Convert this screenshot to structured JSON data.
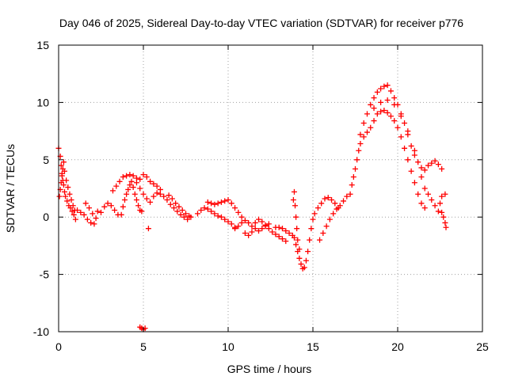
{
  "chart_data": {
    "type": "scatter",
    "title": "Day 046 of 2025, Sidereal Day-to-day VTEC variation (SDTVAR) for receiver p776",
    "xlabel": "GPS time / hours",
    "ylabel": "SDTVAR / TECUs",
    "xlim": [
      0,
      25
    ],
    "ylim": [
      -10,
      15
    ],
    "xticks": [
      0,
      5,
      10,
      15,
      20,
      25
    ],
    "yticks": [
      -10,
      -5,
      0,
      5,
      10,
      15
    ],
    "grid": true,
    "marker": "plus",
    "color": "#ff0000",
    "series": [
      {
        "name": "SDTVAR",
        "points": [
          [
            0.0,
            6.0
          ],
          [
            0.1,
            5.3
          ],
          [
            0.15,
            4.5
          ],
          [
            0.2,
            3.8
          ],
          [
            0.25,
            3.2
          ],
          [
            0.3,
            2.8
          ],
          [
            0.35,
            2.2
          ],
          [
            0.4,
            1.8
          ],
          [
            0.5,
            1.4
          ],
          [
            0.6,
            1.0
          ],
          [
            0.7,
            0.8
          ],
          [
            0.8,
            0.5
          ],
          [
            0.9,
            0.2
          ],
          [
            1.0,
            -0.2
          ],
          [
            0.05,
            1.8
          ],
          [
            0.1,
            2.4
          ],
          [
            0.15,
            3.0
          ],
          [
            0.2,
            3.6
          ],
          [
            0.25,
            4.2
          ],
          [
            0.3,
            4.8
          ],
          [
            0.35,
            4.0
          ],
          [
            0.45,
            3.2
          ],
          [
            0.55,
            2.6
          ],
          [
            0.65,
            2.0
          ],
          [
            0.75,
            1.5
          ],
          [
            0.85,
            1.0
          ],
          [
            0.95,
            0.6
          ],
          [
            1.1,
            0.6
          ],
          [
            1.3,
            0.4
          ],
          [
            1.5,
            0.2
          ],
          [
            1.7,
            -0.2
          ],
          [
            1.9,
            -0.5
          ],
          [
            2.1,
            -0.6
          ],
          [
            2.3,
            0.5
          ],
          [
            1.6,
            1.2
          ],
          [
            1.8,
            0.8
          ],
          [
            2.0,
            0.3
          ],
          [
            2.2,
            -0.1
          ],
          [
            2.5,
            0.4
          ],
          [
            2.7,
            0.9
          ],
          [
            2.9,
            1.2
          ],
          [
            3.1,
            1.0
          ],
          [
            3.3,
            0.6
          ],
          [
            3.5,
            0.2
          ],
          [
            3.2,
            2.3
          ],
          [
            3.4,
            2.7
          ],
          [
            3.6,
            3.1
          ],
          [
            3.8,
            3.5
          ],
          [
            4.0,
            3.6
          ],
          [
            4.2,
            3.7
          ],
          [
            4.4,
            3.6
          ],
          [
            4.6,
            3.4
          ],
          [
            4.8,
            3.3
          ],
          [
            5.0,
            3.7
          ],
          [
            5.2,
            3.5
          ],
          [
            5.4,
            3.1
          ],
          [
            5.6,
            2.9
          ],
          [
            5.8,
            2.7
          ],
          [
            6.0,
            2.4
          ],
          [
            3.7,
            0.2
          ],
          [
            3.8,
            0.9
          ],
          [
            3.9,
            1.5
          ],
          [
            4.0,
            2.0
          ],
          [
            4.1,
            2.4
          ],
          [
            4.2,
            2.8
          ],
          [
            4.3,
            3.1
          ],
          [
            4.4,
            2.6
          ],
          [
            4.5,
            2.0
          ],
          [
            4.6,
            1.5
          ],
          [
            4.7,
            1.0
          ],
          [
            4.8,
            0.6
          ],
          [
            4.9,
            0.5
          ],
          [
            4.6,
            3.0
          ],
          [
            4.8,
            2.5
          ],
          [
            5.0,
            2.0
          ],
          [
            5.2,
            1.6
          ],
          [
            5.4,
            1.3
          ],
          [
            5.6,
            1.8
          ],
          [
            5.8,
            2.1
          ],
          [
            6.0,
            2.0
          ],
          [
            6.2,
            1.8
          ],
          [
            6.4,
            1.5
          ],
          [
            6.6,
            1.1
          ],
          [
            6.8,
            0.8
          ],
          [
            7.0,
            0.5
          ],
          [
            7.2,
            0.2
          ],
          [
            7.4,
            0.0
          ],
          [
            7.6,
            -0.2
          ],
          [
            7.8,
            0.0
          ],
          [
            6.5,
            1.9
          ],
          [
            6.7,
            1.6
          ],
          [
            6.9,
            1.2
          ],
          [
            7.1,
            0.9
          ],
          [
            7.3,
            0.6
          ],
          [
            7.5,
            0.3
          ],
          [
            7.7,
            0.1
          ],
          [
            8.2,
            0.3
          ],
          [
            8.4,
            0.6
          ],
          [
            8.6,
            0.8
          ],
          [
            8.8,
            0.7
          ],
          [
            9.0,
            0.5
          ],
          [
            9.2,
            0.3
          ],
          [
            9.4,
            0.1
          ],
          [
            9.6,
            0.0
          ],
          [
            9.8,
            -0.2
          ],
          [
            10.0,
            -0.4
          ],
          [
            10.2,
            -0.6
          ],
          [
            10.4,
            -0.9
          ],
          [
            8.8,
            1.3
          ],
          [
            9.0,
            1.2
          ],
          [
            9.2,
            1.1
          ],
          [
            9.4,
            1.2
          ],
          [
            9.6,
            1.3
          ],
          [
            9.8,
            1.4
          ],
          [
            10.0,
            1.5
          ],
          [
            10.2,
            1.2
          ],
          [
            10.4,
            0.8
          ],
          [
            10.6,
            0.4
          ],
          [
            10.8,
            0.0
          ],
          [
            10.4,
            -1.0
          ],
          [
            10.6,
            -0.8
          ],
          [
            10.8,
            -0.5
          ],
          [
            11.0,
            -0.3
          ],
          [
            11.2,
            -0.5
          ],
          [
            11.4,
            -0.8
          ],
          [
            11.6,
            -1.0
          ],
          [
            11.8,
            -1.2
          ],
          [
            12.0,
            -1.0
          ],
          [
            12.2,
            -0.8
          ],
          [
            12.4,
            -0.6
          ],
          [
            11.0,
            -1.4
          ],
          [
            11.2,
            -1.6
          ],
          [
            11.4,
            -1.3
          ],
          [
            11.6,
            -0.5
          ],
          [
            11.8,
            -0.2
          ],
          [
            12.0,
            -0.4
          ],
          [
            12.2,
            -0.7
          ],
          [
            12.4,
            -1.0
          ],
          [
            12.6,
            -1.3
          ],
          [
            12.8,
            -1.5
          ],
          [
            13.0,
            -1.7
          ],
          [
            13.2,
            -1.9
          ],
          [
            13.4,
            -2.1
          ],
          [
            12.8,
            -0.9
          ],
          [
            13.0,
            -0.9
          ],
          [
            13.2,
            -1.0
          ],
          [
            13.4,
            -1.2
          ],
          [
            13.6,
            -1.4
          ],
          [
            13.8,
            -1.6
          ],
          [
            13.9,
            -1.8
          ],
          [
            14.0,
            -2.4
          ],
          [
            14.1,
            -3.0
          ],
          [
            14.2,
            -3.6
          ],
          [
            14.3,
            -4.1
          ],
          [
            14.4,
            -4.5
          ],
          [
            14.5,
            -4.4
          ],
          [
            14.6,
            -3.8
          ],
          [
            14.7,
            -3.0
          ],
          [
            14.8,
            -2.0
          ],
          [
            14.9,
            -1.0
          ],
          [
            15.0,
            -0.2
          ],
          [
            13.85,
            1.5
          ],
          [
            13.9,
            2.2
          ],
          [
            13.95,
            1.0
          ],
          [
            14.0,
            0.0
          ],
          [
            14.05,
            -1.0
          ],
          [
            14.1,
            -2.0
          ],
          [
            14.2,
            -2.8
          ],
          [
            15.1,
            0.3
          ],
          [
            15.3,
            0.8
          ],
          [
            15.5,
            1.2
          ],
          [
            15.7,
            1.6
          ],
          [
            15.9,
            1.7
          ],
          [
            16.1,
            1.5
          ],
          [
            16.3,
            1.2
          ],
          [
            16.5,
            0.8
          ],
          [
            15.4,
            -2.0
          ],
          [
            15.6,
            -1.4
          ],
          [
            15.8,
            -0.8
          ],
          [
            16.0,
            -0.2
          ],
          [
            16.2,
            0.3
          ],
          [
            16.4,
            0.7
          ],
          [
            16.6,
            1.0
          ],
          [
            16.8,
            1.4
          ],
          [
            17.0,
            1.8
          ],
          [
            17.2,
            2.0
          ],
          [
            17.3,
            2.8
          ],
          [
            17.4,
            3.5
          ],
          [
            17.5,
            4.2
          ],
          [
            17.6,
            5.0
          ],
          [
            17.7,
            5.8
          ],
          [
            17.8,
            6.4
          ],
          [
            18.0,
            7.0
          ],
          [
            18.2,
            7.4
          ],
          [
            18.4,
            7.8
          ],
          [
            18.6,
            8.4
          ],
          [
            18.8,
            9.0
          ],
          [
            19.0,
            9.2
          ],
          [
            19.2,
            9.3
          ],
          [
            19.4,
            9.1
          ],
          [
            19.6,
            8.8
          ],
          [
            19.8,
            8.4
          ],
          [
            20.0,
            7.8
          ],
          [
            20.2,
            7.0
          ],
          [
            20.4,
            6.0
          ],
          [
            20.6,
            5.0
          ],
          [
            20.8,
            4.0
          ],
          [
            21.0,
            3.0
          ],
          [
            21.2,
            2.0
          ],
          [
            21.4,
            1.2
          ],
          [
            21.6,
            0.8
          ],
          [
            17.8,
            7.2
          ],
          [
            18.0,
            8.2
          ],
          [
            18.2,
            9.0
          ],
          [
            18.4,
            9.8
          ],
          [
            18.6,
            10.4
          ],
          [
            18.8,
            10.9
          ],
          [
            19.0,
            11.2
          ],
          [
            19.2,
            11.4
          ],
          [
            19.4,
            11.5
          ],
          [
            19.6,
            11.0
          ],
          [
            19.8,
            10.4
          ],
          [
            20.0,
            9.8
          ],
          [
            20.2,
            9.0
          ],
          [
            20.4,
            8.2
          ],
          [
            20.6,
            7.2
          ],
          [
            20.8,
            6.2
          ],
          [
            21.0,
            5.4
          ],
          [
            21.2,
            4.8
          ],
          [
            21.4,
            4.3
          ],
          [
            21.6,
            4.1
          ],
          [
            18.6,
            9.5
          ],
          [
            19.0,
            10.0
          ],
          [
            19.4,
            10.2
          ],
          [
            19.8,
            9.8
          ],
          [
            20.2,
            8.8
          ],
          [
            20.6,
            7.5
          ],
          [
            21.0,
            5.8
          ],
          [
            21.4,
            3.5
          ],
          [
            21.6,
            2.5
          ],
          [
            21.8,
            2.0
          ],
          [
            22.0,
            1.5
          ],
          [
            22.2,
            1.0
          ],
          [
            22.4,
            0.5
          ],
          [
            22.6,
            1.8
          ],
          [
            22.8,
            2.0
          ],
          [
            21.8,
            4.5
          ],
          [
            22.0,
            4.7
          ],
          [
            22.2,
            4.9
          ],
          [
            22.4,
            4.6
          ],
          [
            22.6,
            4.2
          ],
          [
            22.5,
            1.2
          ],
          [
            22.6,
            0.4
          ],
          [
            22.7,
            0.0
          ],
          [
            22.8,
            -0.5
          ],
          [
            22.85,
            -0.9
          ],
          [
            4.8,
            -9.6
          ],
          [
            4.9,
            -9.7
          ],
          [
            5.0,
            -9.8
          ],
          [
            5.1,
            -9.7
          ],
          [
            5.3,
            -1.0
          ]
        ]
      }
    ]
  }
}
